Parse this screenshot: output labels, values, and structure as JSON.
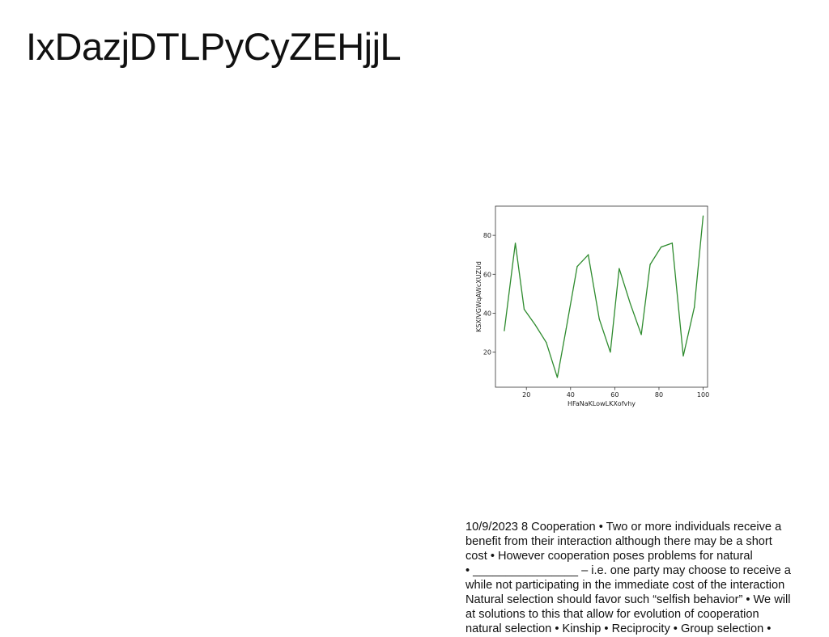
{
  "slide": {
    "title": "IxDazjDTLPyCyZEHjjL"
  },
  "chart_data": {
    "type": "line",
    "title": "",
    "xlabel": "HFaNaKLowLKXofvhy",
    "ylabel": "KSXIVGWqAWcXUZUd",
    "xlim": [
      6,
      102
    ],
    "ylim": [
      2,
      95
    ],
    "xticks": [
      20,
      40,
      60,
      80,
      100
    ],
    "yticks": [
      20,
      40,
      60,
      80
    ],
    "grid": false,
    "series": [
      {
        "color": "#2e8b2e",
        "x": [
          10,
          15,
          19,
          24,
          29,
          34,
          38,
          43,
          48,
          53,
          58,
          62,
          67,
          72,
          76,
          81,
          86,
          91,
          96,
          100
        ],
        "y": [
          31,
          76,
          42,
          34,
          25,
          7,
          32,
          64,
          70,
          37,
          20,
          63,
          45,
          29,
          65,
          74,
          76,
          18,
          43,
          90
        ]
      }
    ]
  },
  "body": {
    "lines": [
      "10/9/2023 8 Cooperation • Two or more individuals receive a",
      "benefit from their interaction although there may be a short",
      "cost • However cooperation poses problems for natural",
      "• ________________ – i.e. one party may choose to receive a",
      "while not participating in the immediate cost of the interaction",
      "Natural selection should favor such “selfish behavior” • We will",
      "at solutions to this that allow for evolution of cooperation",
      "natural selection • Kinship • Reciprocity • Group selection •"
    ]
  }
}
